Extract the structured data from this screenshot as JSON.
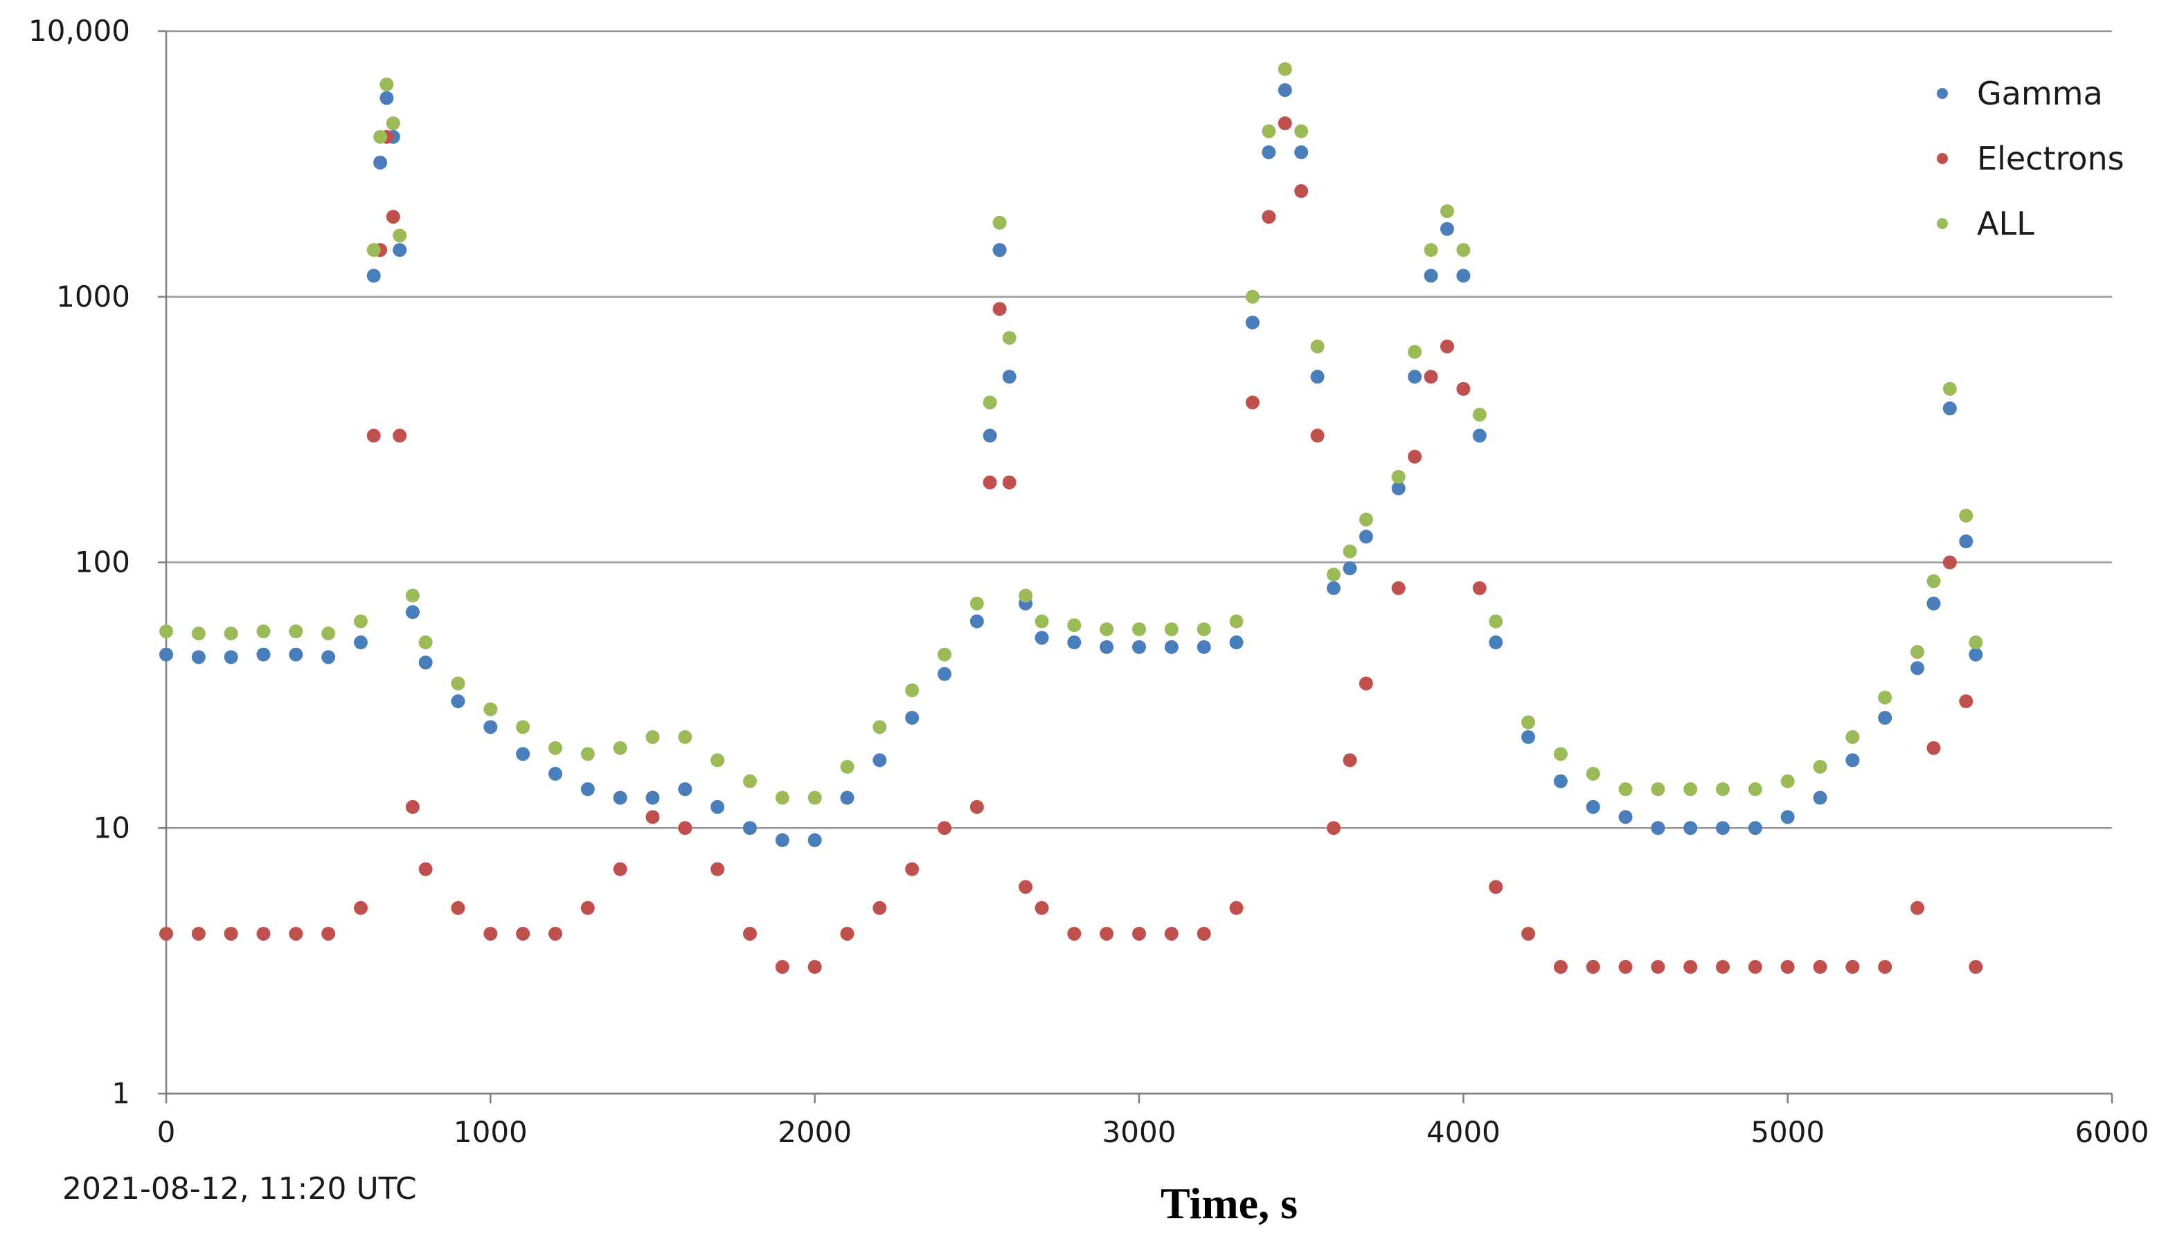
{
  "chart_data": {
    "type": "scatter",
    "title": "",
    "xlabel": "Time, s",
    "ylabel": "",
    "annotation": "2021-08-12, 11:20 UTC",
    "xlim": [
      0,
      6000
    ],
    "ylim": [
      1,
      10000
    ],
    "yscale": "log",
    "grid": "horizontal",
    "legend_position": "top-right",
    "x_ticks": [
      {
        "value": 0,
        "label": "0"
      },
      {
        "value": 1000,
        "label": "1000"
      },
      {
        "value": 2000,
        "label": "2000"
      },
      {
        "value": 3000,
        "label": "3000"
      },
      {
        "value": 4000,
        "label": "4000"
      },
      {
        "value": 5000,
        "label": "5000"
      },
      {
        "value": 6000,
        "label": "6000"
      }
    ],
    "y_ticks": [
      {
        "value": 1,
        "label": "1"
      },
      {
        "value": 10,
        "label": "10"
      },
      {
        "value": 100,
        "label": "100"
      },
      {
        "value": 1000,
        "label": "1000"
      },
      {
        "value": 10000,
        "label": "10,000"
      }
    ],
    "series": [
      {
        "name": "Gamma",
        "color": "#4a7ebb",
        "x": [
          0,
          100,
          200,
          300,
          400,
          500,
          600,
          640,
          660,
          680,
          700,
          720,
          760,
          800,
          900,
          1000,
          1100,
          1200,
          1300,
          1400,
          1500,
          1600,
          1700,
          1800,
          1900,
          2000,
          2100,
          2200,
          2300,
          2400,
          2500,
          2540,
          2570,
          2600,
          2650,
          2700,
          2800,
          2900,
          3000,
          3100,
          3200,
          3300,
          3350,
          3400,
          3450,
          3500,
          3550,
          3600,
          3650,
          3700,
          3800,
          3850,
          3900,
          3950,
          4000,
          4050,
          4100,
          4200,
          4300,
          4400,
          4500,
          4600,
          4700,
          4800,
          4900,
          5000,
          5100,
          5200,
          5300,
          5400,
          5450,
          5500,
          5550,
          5580
        ],
        "values": [
          45,
          44,
          44,
          45,
          45,
          44,
          50,
          1200,
          3200,
          5600,
          4000,
          1500,
          65,
          42,
          30,
          24,
          19,
          16,
          14,
          13,
          13,
          14,
          12,
          10,
          9,
          9,
          13,
          18,
          26,
          38,
          60,
          300,
          1500,
          500,
          70,
          52,
          50,
          48,
          48,
          48,
          48,
          50,
          800,
          3500,
          6000,
          3500,
          500,
          80,
          95,
          125,
          190,
          500,
          1200,
          1800,
          1200,
          300,
          50,
          22,
          15,
          12,
          11,
          10,
          10,
          10,
          10,
          11,
          13,
          18,
          26,
          40,
          70,
          380,
          120,
          45
        ]
      },
      {
        "name": "Electrons",
        "color": "#c0504d",
        "x": [
          0,
          100,
          200,
          300,
          400,
          500,
          600,
          640,
          660,
          680,
          700,
          720,
          760,
          800,
          900,
          1000,
          1100,
          1200,
          1300,
          1400,
          1500,
          1600,
          1700,
          1800,
          1900,
          2000,
          2100,
          2200,
          2300,
          2400,
          2500,
          2540,
          2570,
          2600,
          2650,
          2700,
          2800,
          2900,
          3000,
          3100,
          3200,
          3300,
          3350,
          3400,
          3450,
          3500,
          3550,
          3600,
          3650,
          3700,
          3800,
          3850,
          3900,
          3950,
          4000,
          4050,
          4100,
          4200,
          4300,
          4400,
          4500,
          4600,
          4700,
          4800,
          4900,
          5000,
          5100,
          5200,
          5300,
          5400,
          5450,
          5500,
          5550,
          5580
        ],
        "values": [
          4,
          4,
          4,
          4,
          4,
          4,
          5,
          300,
          1500,
          4000,
          2000,
          300,
          12,
          7,
          5,
          4,
          4,
          4,
          5,
          7,
          11,
          10,
          7,
          4,
          3,
          3,
          4,
          5,
          7,
          10,
          12,
          200,
          900,
          200,
          6,
          5,
          4,
          4,
          4,
          4,
          4,
          5,
          400,
          2000,
          4500,
          2500,
          300,
          10,
          18,
          35,
          80,
          250,
          500,
          650,
          450,
          80,
          6,
          4,
          3,
          3,
          3,
          3,
          3,
          3,
          3,
          3,
          3,
          3,
          3,
          5,
          20,
          100,
          30,
          3
        ]
      },
      {
        "name": "ALL",
        "color": "#9bbb59",
        "x": [
          0,
          100,
          200,
          300,
          400,
          500,
          600,
          640,
          660,
          680,
          700,
          720,
          760,
          800,
          900,
          1000,
          1100,
          1200,
          1300,
          1400,
          1500,
          1600,
          1700,
          1800,
          1900,
          2000,
          2100,
          2200,
          2300,
          2400,
          2500,
          2540,
          2570,
          2600,
          2650,
          2700,
          2800,
          2900,
          3000,
          3100,
          3200,
          3300,
          3350,
          3400,
          3450,
          3500,
          3550,
          3600,
          3650,
          3700,
          3800,
          3850,
          3900,
          3950,
          4000,
          4050,
          4100,
          4200,
          4300,
          4400,
          4500,
          4600,
          4700,
          4800,
          4900,
          5000,
          5100,
          5200,
          5300,
          5400,
          5450,
          5500,
          5550,
          5580
        ],
        "values": [
          55,
          54,
          54,
          55,
          55,
          54,
          60,
          1500,
          4000,
          6300,
          4500,
          1700,
          75,
          50,
          35,
          28,
          24,
          20,
          19,
          20,
          22,
          22,
          18,
          15,
          13,
          13,
          17,
          24,
          33,
          45,
          70,
          400,
          1900,
          700,
          75,
          60,
          58,
          56,
          56,
          56,
          56,
          60,
          1000,
          4200,
          7200,
          4200,
          650,
          90,
          110,
          145,
          210,
          620,
          1500,
          2100,
          1500,
          360,
          60,
          25,
          19,
          16,
          14,
          14,
          14,
          14,
          14,
          15,
          17,
          22,
          31,
          46,
          85,
          450,
          150,
          50
        ]
      }
    ]
  }
}
